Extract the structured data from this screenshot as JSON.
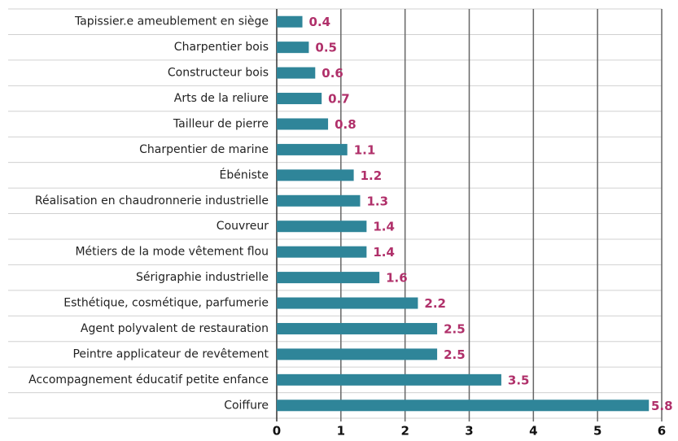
{
  "chart_data": {
    "type": "barh",
    "categories": [
      "Tapissier.e ameublement en siège",
      "Charpentier bois",
      "Constructeur bois",
      "Arts de la reliure",
      "Tailleur de pierre",
      "Charpentier de marine",
      "Ébéniste",
      "Réalisation en chaudronnerie industrielle",
      "Couvreur",
      "Métiers de la mode vêtement flou",
      "Sérigraphie industrielle",
      "Esthétique, cosmétique, parfumerie",
      "Agent polyvalent de restauration",
      "Peintre applicateur de revêtement",
      "Accompagnement éducatif petite enfance",
      "Coiffure"
    ],
    "values": [
      0.4,
      0.5,
      0.6,
      0.7,
      0.8,
      1.1,
      1.2,
      1.3,
      1.4,
      1.4,
      1.6,
      2.2,
      2.5,
      2.5,
      3.5,
      5.8
    ],
    "color": "#2f8599",
    "label_color": "#b0306a",
    "xlim": [
      0,
      6
    ],
    "xticks": [
      0,
      1,
      2,
      3,
      4,
      5,
      6
    ],
    "grid": true
  }
}
